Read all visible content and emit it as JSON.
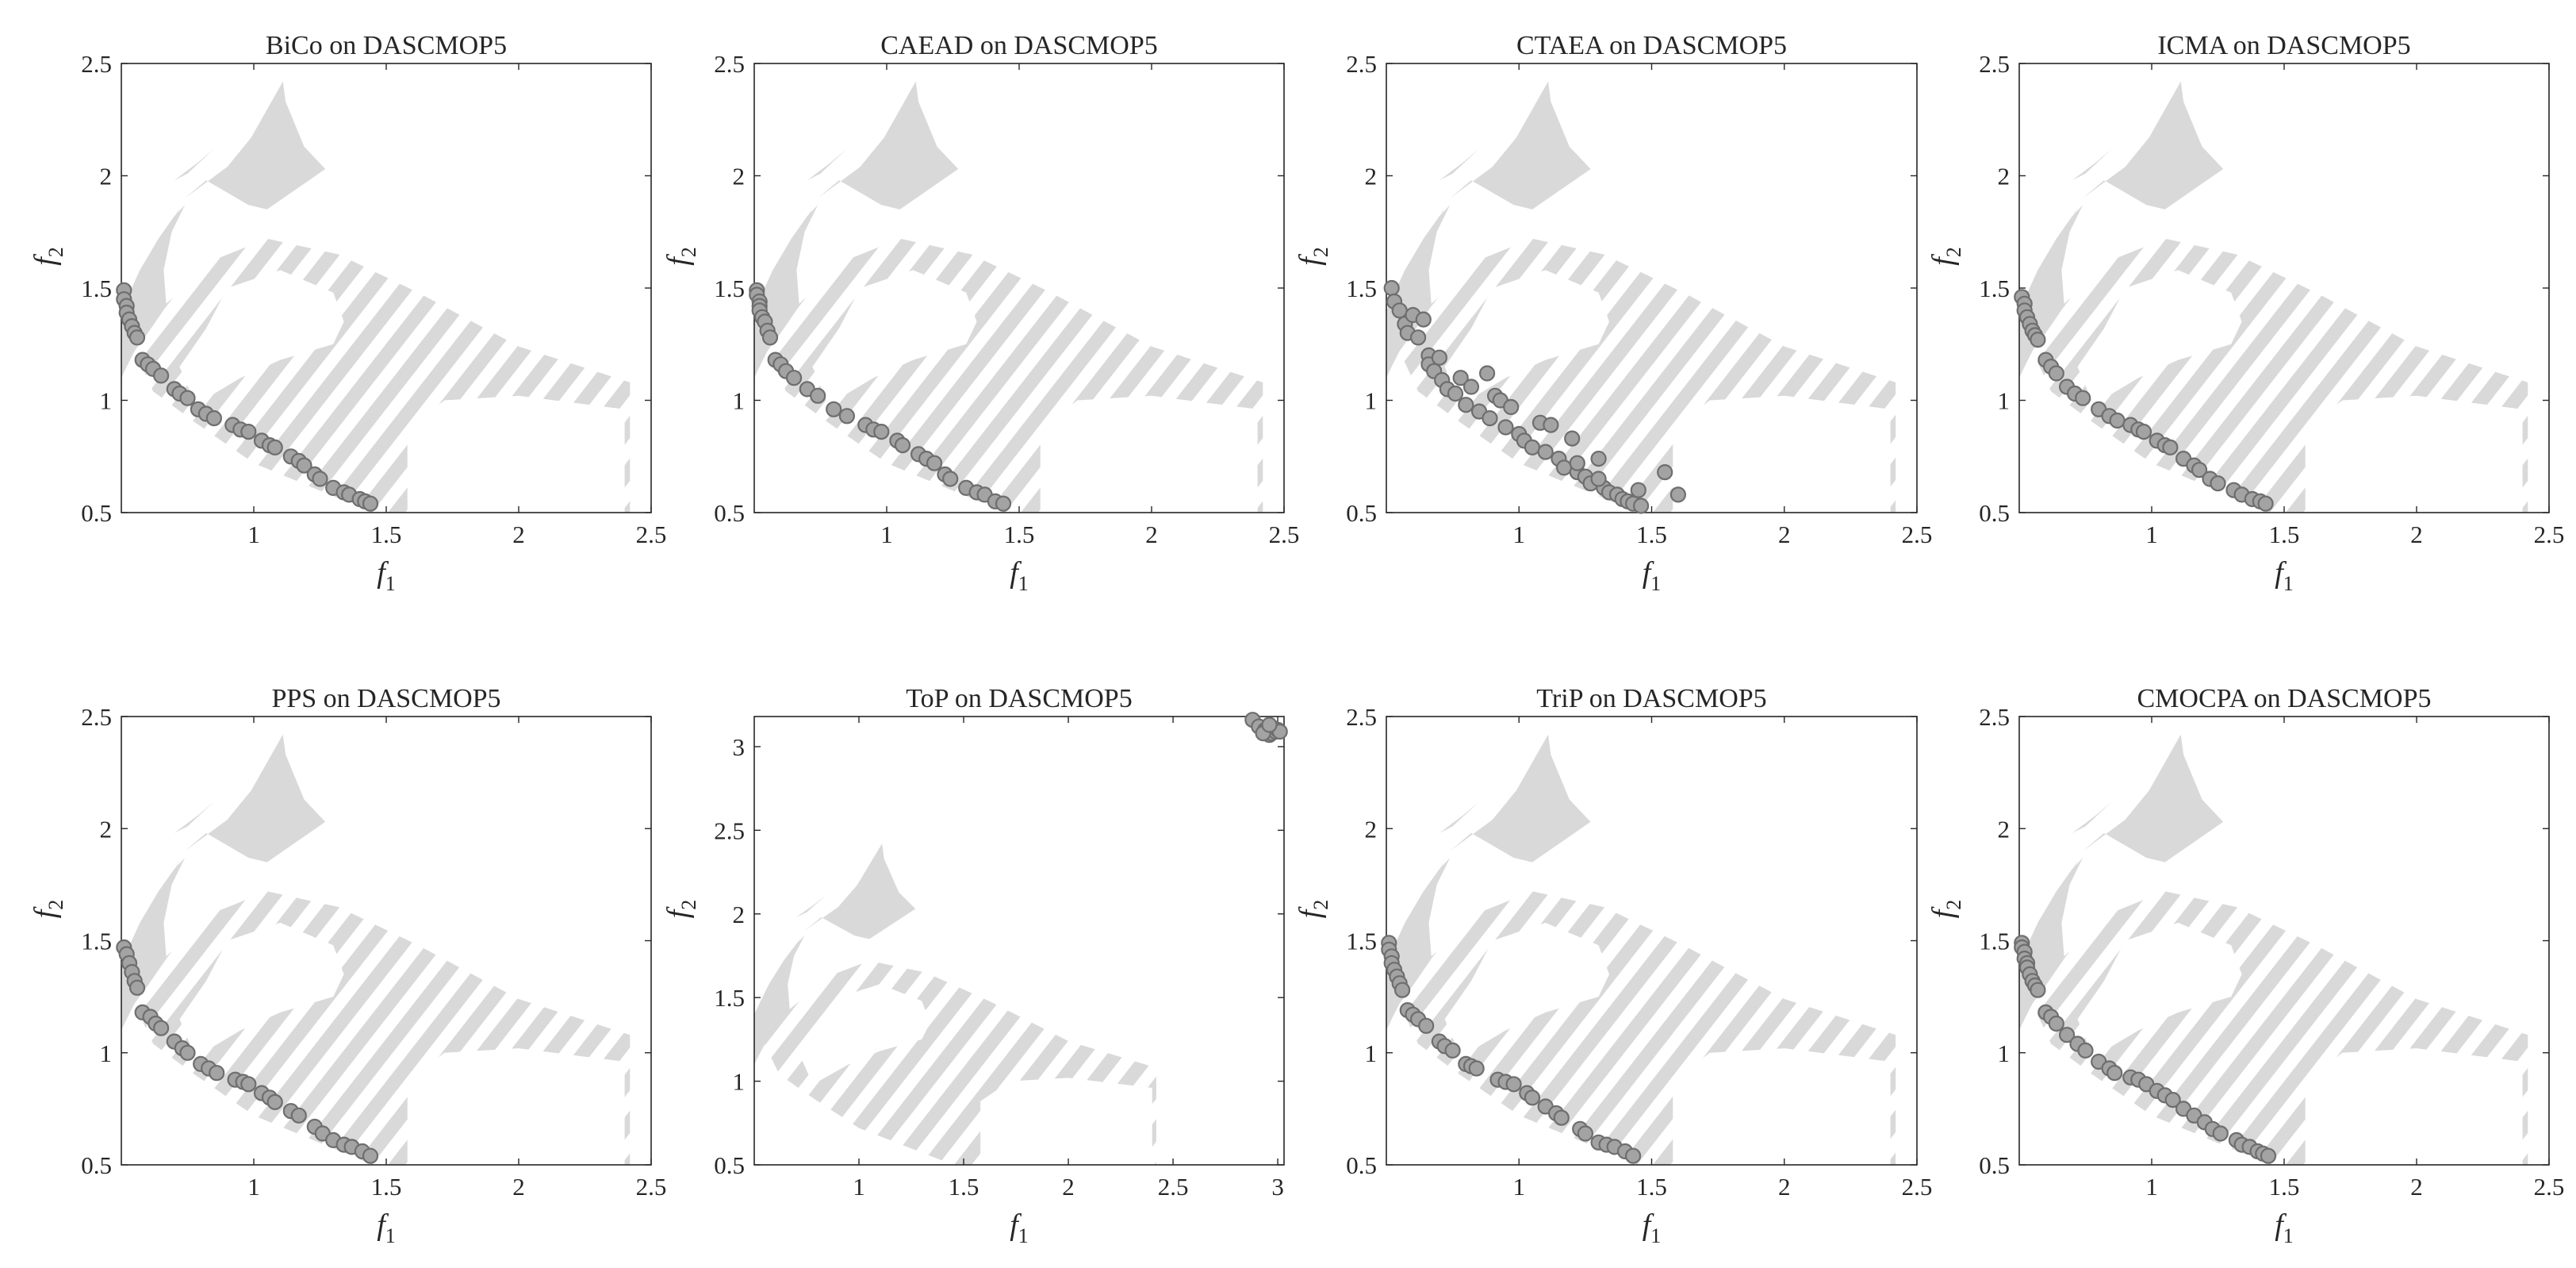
{
  "figure": {
    "background": "#ffffff",
    "region_color": "#d9d9d9",
    "point_fill": "#a3a3a3",
    "point_edge": "#6e6e6e",
    "axis_color": "#262626"
  },
  "chart_data": [
    {
      "type": "scatter",
      "title": "BiCo on DASCMOP5",
      "xlabel": "f",
      "xlabel_sub": "1",
      "ylabel": "f",
      "ylabel_sub": "2",
      "xlim": [
        0.5,
        2.5
      ],
      "ylim": [
        0.5,
        2.5
      ],
      "xticks": [
        1,
        1.5,
        2,
        2.5
      ],
      "xticklabels": [
        "1",
        "1.5",
        "2",
        "2.5"
      ],
      "yticks": [
        0.5,
        1,
        1.5,
        2,
        2.5
      ],
      "yticklabels": [
        "0.5",
        "1",
        "1.5",
        "2",
        "2.5"
      ],
      "points": {
        "x": [
          0.51,
          0.51,
          0.52,
          0.52,
          0.53,
          0.54,
          0.55,
          0.56,
          0.58,
          0.6,
          0.62,
          0.65,
          0.7,
          0.72,
          0.75,
          0.79,
          0.82,
          0.85,
          0.92,
          0.95,
          0.98,
          1.03,
          1.06,
          1.08,
          1.14,
          1.17,
          1.19,
          1.23,
          1.25,
          1.3,
          1.34,
          1.36,
          1.4,
          1.42,
          1.44
        ],
        "y": [
          1.49,
          1.45,
          1.42,
          1.39,
          1.36,
          1.33,
          1.3,
          1.28,
          1.18,
          1.16,
          1.14,
          1.11,
          1.05,
          1.03,
          1.01,
          0.96,
          0.94,
          0.92,
          0.89,
          0.87,
          0.86,
          0.82,
          0.8,
          0.79,
          0.75,
          0.73,
          0.71,
          0.67,
          0.65,
          0.61,
          0.59,
          0.58,
          0.56,
          0.55,
          0.54
        ]
      }
    },
    {
      "type": "scatter",
      "title": "CAEAD on DASCMOP5",
      "xlabel": "f",
      "xlabel_sub": "1",
      "ylabel": "f",
      "ylabel_sub": "2",
      "xlim": [
        0.5,
        2.5
      ],
      "ylim": [
        0.5,
        2.5
      ],
      "xticks": [
        1,
        1.5,
        2,
        2.5
      ],
      "xticklabels": [
        "1",
        "1.5",
        "2",
        "2.5"
      ],
      "yticks": [
        0.5,
        1,
        1.5,
        2,
        2.5
      ],
      "yticklabels": [
        "0.5",
        "1",
        "1.5",
        "2",
        "2.5"
      ],
      "points": {
        "x": [
          0.51,
          0.51,
          0.52,
          0.52,
          0.52,
          0.53,
          0.54,
          0.55,
          0.56,
          0.58,
          0.6,
          0.62,
          0.65,
          0.7,
          0.74,
          0.8,
          0.85,
          0.92,
          0.95,
          0.98,
          1.04,
          1.06,
          1.12,
          1.15,
          1.18,
          1.22,
          1.24,
          1.3,
          1.34,
          1.37,
          1.41,
          1.44
        ],
        "y": [
          1.49,
          1.47,
          1.44,
          1.42,
          1.4,
          1.37,
          1.35,
          1.31,
          1.28,
          1.18,
          1.16,
          1.13,
          1.1,
          1.05,
          1.02,
          0.96,
          0.93,
          0.89,
          0.87,
          0.86,
          0.82,
          0.8,
          0.76,
          0.74,
          0.72,
          0.67,
          0.65,
          0.61,
          0.59,
          0.58,
          0.55,
          0.54
        ]
      }
    },
    {
      "type": "scatter",
      "title": "CTAEA on DASCMOP5",
      "xlabel": "f",
      "xlabel_sub": "1",
      "ylabel": "f",
      "ylabel_sub": "2",
      "xlim": [
        0.5,
        2.5
      ],
      "ylim": [
        0.5,
        2.5
      ],
      "xticks": [
        1,
        1.5,
        2,
        2.5
      ],
      "xticklabels": [
        "1",
        "1.5",
        "2",
        "2.5"
      ],
      "yticks": [
        0.5,
        1,
        1.5,
        2,
        2.5
      ],
      "yticklabels": [
        "0.5",
        "1",
        "1.5",
        "2",
        "2.5"
      ],
      "points": {
        "x": [
          0.52,
          0.53,
          0.55,
          0.57,
          0.58,
          0.6,
          0.62,
          0.64,
          0.66,
          0.66,
          0.68,
          0.7,
          0.71,
          0.73,
          0.76,
          0.78,
          0.8,
          0.82,
          0.85,
          0.88,
          0.89,
          0.91,
          0.93,
          0.95,
          0.97,
          1.0,
          1.02,
          1.05,
          1.08,
          1.1,
          1.12,
          1.15,
          1.17,
          1.2,
          1.22,
          1.25,
          1.27,
          1.3,
          1.32,
          1.34,
          1.37,
          1.39,
          1.41,
          1.43,
          1.45,
          1.46,
          1.55,
          1.6,
          1.3,
          1.22
        ],
        "y": [
          1.5,
          1.44,
          1.4,
          1.34,
          1.3,
          1.38,
          1.28,
          1.36,
          1.2,
          1.16,
          1.13,
          1.19,
          1.09,
          1.05,
          1.03,
          1.1,
          0.98,
          1.06,
          0.95,
          1.12,
          0.92,
          1.02,
          1.0,
          0.88,
          0.97,
          0.85,
          0.82,
          0.79,
          0.9,
          0.77,
          0.89,
          0.74,
          0.7,
          0.83,
          0.68,
          0.66,
          0.63,
          0.74,
          0.61,
          0.59,
          0.58,
          0.56,
          0.55,
          0.54,
          0.6,
          0.53,
          0.68,
          0.58,
          0.65,
          0.72
        ]
      }
    },
    {
      "type": "scatter",
      "title": "ICMA on DASCMOP5",
      "xlabel": "f",
      "xlabel_sub": "1",
      "ylabel": "f",
      "ylabel_sub": "2",
      "xlim": [
        0.5,
        2.5
      ],
      "ylim": [
        0.5,
        2.5
      ],
      "xticks": [
        1,
        1.5,
        2,
        2.5
      ],
      "xticklabels": [
        "1",
        "1.5",
        "2",
        "2.5"
      ],
      "yticks": [
        0.5,
        1,
        1.5,
        2,
        2.5
      ],
      "yticklabels": [
        "0.5",
        "1",
        "1.5",
        "2",
        "2.5"
      ],
      "points": {
        "x": [
          0.51,
          0.52,
          0.52,
          0.53,
          0.54,
          0.55,
          0.56,
          0.57,
          0.6,
          0.62,
          0.64,
          0.68,
          0.71,
          0.74,
          0.8,
          0.84,
          0.87,
          0.92,
          0.95,
          0.97,
          1.02,
          1.05,
          1.07,
          1.12,
          1.16,
          1.18,
          1.22,
          1.25,
          1.31,
          1.34,
          1.38,
          1.41,
          1.43
        ],
        "y": [
          1.46,
          1.43,
          1.4,
          1.37,
          1.34,
          1.31,
          1.29,
          1.27,
          1.18,
          1.15,
          1.12,
          1.06,
          1.03,
          1.01,
          0.96,
          0.93,
          0.91,
          0.89,
          0.87,
          0.86,
          0.82,
          0.8,
          0.79,
          0.74,
          0.71,
          0.69,
          0.65,
          0.63,
          0.6,
          0.58,
          0.56,
          0.55,
          0.54
        ]
      }
    },
    {
      "type": "scatter",
      "title": "PPS on DASCMOP5",
      "xlabel": "f",
      "xlabel_sub": "1",
      "ylabel": "f",
      "ylabel_sub": "2",
      "xlim": [
        0.5,
        2.5
      ],
      "ylim": [
        0.5,
        2.5
      ],
      "xticks": [
        1,
        1.5,
        2,
        2.5
      ],
      "xticklabels": [
        "1",
        "1.5",
        "2",
        "2.5"
      ],
      "yticks": [
        0.5,
        1,
        1.5,
        2,
        2.5
      ],
      "yticklabels": [
        "0.5",
        "1",
        "1.5",
        "2",
        "2.5"
      ],
      "points": {
        "x": [
          0.51,
          0.52,
          0.53,
          0.54,
          0.55,
          0.56,
          0.58,
          0.61,
          0.63,
          0.65,
          0.7,
          0.73,
          0.75,
          0.8,
          0.83,
          0.86,
          0.93,
          0.96,
          0.98,
          1.03,
          1.06,
          1.08,
          1.14,
          1.17,
          1.23,
          1.26,
          1.3,
          1.34,
          1.37,
          1.41,
          1.44
        ],
        "y": [
          1.47,
          1.44,
          1.4,
          1.36,
          1.32,
          1.29,
          1.18,
          1.16,
          1.13,
          1.11,
          1.05,
          1.02,
          1.0,
          0.95,
          0.93,
          0.91,
          0.88,
          0.87,
          0.86,
          0.82,
          0.8,
          0.78,
          0.74,
          0.72,
          0.67,
          0.64,
          0.61,
          0.59,
          0.58,
          0.56,
          0.54
        ]
      }
    },
    {
      "type": "scatter",
      "title": "ToP on DASCMOP5",
      "xlabel": "f",
      "xlabel_sub": "1",
      "ylabel": "f",
      "ylabel_sub": "2",
      "xlim": [
        0.5,
        3.03
      ],
      "ylim": [
        0.5,
        3.18
      ],
      "xticks": [
        1,
        1.5,
        2,
        2.5,
        3
      ],
      "xticklabels": [
        "1",
        "1.5",
        "2",
        "2.5",
        "3"
      ],
      "yticks": [
        0.5,
        1,
        1.5,
        2,
        2.5,
        3
      ],
      "yticklabels": [
        "0.5",
        "1",
        "1.5",
        "2",
        "2.5",
        "3"
      ],
      "points": {
        "x": [
          2.88,
          2.91,
          2.94,
          2.96,
          2.97,
          2.98,
          2.99,
          3.0,
          3.01,
          2.93,
          2.96
        ],
        "y": [
          3.16,
          3.12,
          3.1,
          3.07,
          3.08,
          3.11,
          3.09,
          3.1,
          3.09,
          3.08,
          3.13
        ]
      }
    },
    {
      "type": "scatter",
      "title": "TriP on DASCMOP5",
      "xlabel": "f",
      "xlabel_sub": "1",
      "ylabel": "f",
      "ylabel_sub": "2",
      "xlim": [
        0.5,
        2.5
      ],
      "ylim": [
        0.5,
        2.5
      ],
      "xticks": [
        1,
        1.5,
        2,
        2.5
      ],
      "xticklabels": [
        "1",
        "1.5",
        "2",
        "2.5"
      ],
      "yticks": [
        0.5,
        1,
        1.5,
        2,
        2.5
      ],
      "yticklabels": [
        "0.5",
        "1",
        "1.5",
        "2",
        "2.5"
      ],
      "points": {
        "x": [
          0.51,
          0.51,
          0.52,
          0.52,
          0.53,
          0.54,
          0.55,
          0.56,
          0.58,
          0.6,
          0.62,
          0.65,
          0.7,
          0.72,
          0.75,
          0.8,
          0.82,
          0.84,
          0.92,
          0.95,
          0.98,
          1.03,
          1.05,
          1.1,
          1.14,
          1.16,
          1.23,
          1.25,
          1.3,
          1.33,
          1.36,
          1.4,
          1.43
        ],
        "y": [
          1.49,
          1.46,
          1.43,
          1.4,
          1.37,
          1.34,
          1.31,
          1.28,
          1.19,
          1.17,
          1.15,
          1.12,
          1.05,
          1.03,
          1.01,
          0.95,
          0.94,
          0.93,
          0.88,
          0.87,
          0.86,
          0.82,
          0.8,
          0.76,
          0.73,
          0.71,
          0.66,
          0.64,
          0.6,
          0.59,
          0.58,
          0.56,
          0.54
        ]
      }
    },
    {
      "type": "scatter",
      "title": "CMOCPA on DASCMOP5",
      "xlabel": "f",
      "xlabel_sub": "1",
      "ylabel": "f",
      "ylabel_sub": "2",
      "xlim": [
        0.5,
        2.5
      ],
      "ylim": [
        0.5,
        2.5
      ],
      "xticks": [
        1,
        1.5,
        2,
        2.5
      ],
      "xticklabels": [
        "1",
        "1.5",
        "2",
        "2.5"
      ],
      "yticks": [
        0.5,
        1,
        1.5,
        2,
        2.5
      ],
      "yticklabels": [
        "0.5",
        "1",
        "1.5",
        "2",
        "2.5"
      ],
      "points": {
        "x": [
          0.51,
          0.51,
          0.52,
          0.52,
          0.53,
          0.53,
          0.54,
          0.55,
          0.56,
          0.57,
          0.6,
          0.62,
          0.64,
          0.68,
          0.72,
          0.75,
          0.8,
          0.84,
          0.86,
          0.92,
          0.95,
          0.98,
          1.02,
          1.05,
          1.08,
          1.12,
          1.16,
          1.2,
          1.23,
          1.26,
          1.32,
          1.34,
          1.37,
          1.4,
          1.42,
          1.44
        ],
        "y": [
          1.49,
          1.47,
          1.45,
          1.42,
          1.4,
          1.38,
          1.35,
          1.32,
          1.3,
          1.28,
          1.18,
          1.16,
          1.13,
          1.08,
          1.04,
          1.01,
          0.96,
          0.93,
          0.91,
          0.89,
          0.88,
          0.86,
          0.83,
          0.81,
          0.79,
          0.75,
          0.72,
          0.69,
          0.66,
          0.64,
          0.61,
          0.59,
          0.58,
          0.56,
          0.55,
          0.54
        ]
      }
    }
  ]
}
